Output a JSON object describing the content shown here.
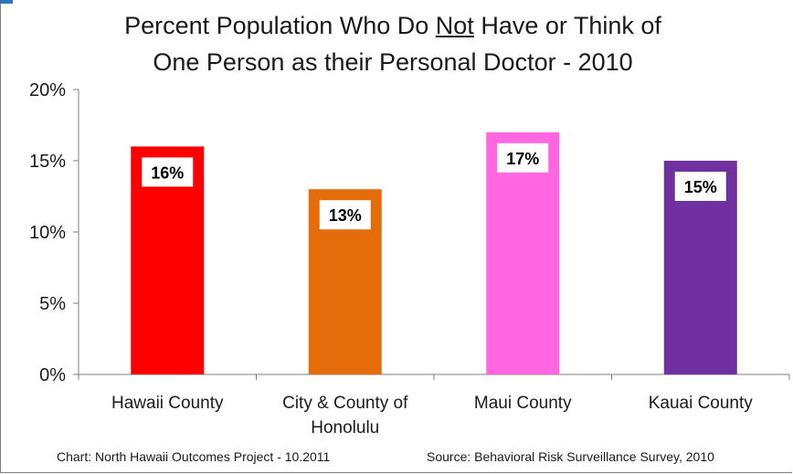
{
  "chart_data": {
    "type": "bar",
    "title_line1_pre": "Percent Population Who Do ",
    "title_line1_emph": "Not",
    "title_line1_post": " Have or Think of",
    "title_line2": "One Person as their Personal Doctor - 2010",
    "categories": [
      [
        "Hawaii County"
      ],
      [
        "City & County of",
        "Honolulu"
      ],
      [
        "Maui County"
      ],
      [
        "Kauai County"
      ]
    ],
    "values": [
      16,
      13,
      17,
      15
    ],
    "data_labels": [
      "16%",
      "13%",
      "17%",
      "15%"
    ],
    "colors": [
      "#ff0000",
      "#e46c0a",
      "#ff66e0",
      "#7030a0"
    ],
    "yticks": [
      "0%",
      "5%",
      "10%",
      "15%",
      "20%"
    ],
    "ylim": [
      0,
      20
    ],
    "grid": false,
    "legend": "none"
  },
  "footer": {
    "left": "Chart:  North Hawaii Outcomes Project - 10.2011",
    "right": "Source:  Behavioral Risk Surveillance Survey, 2010"
  },
  "colors": {
    "axis": "#7f7f7f",
    "corner_accent": "#2e75b6"
  }
}
